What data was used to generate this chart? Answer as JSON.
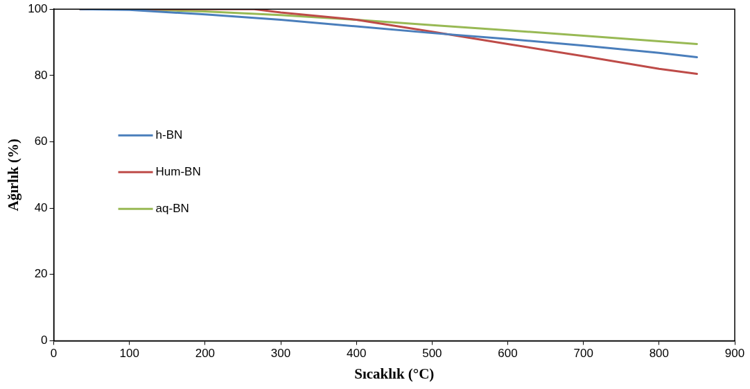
{
  "chart_data": {
    "type": "line",
    "xlabel": "Sıcaklık (°C)",
    "ylabel": "Ağırlık (%)",
    "xlim": [
      0,
      900
    ],
    "xticks": [
      0,
      100,
      200,
      300,
      400,
      500,
      600,
      700,
      800,
      900
    ],
    "ylim": [
      0,
      100
    ],
    "yticks": [
      0,
      20,
      40,
      60,
      80,
      100
    ],
    "grid": false,
    "legend": "left",
    "marker": "none",
    "line_style": "solid",
    "series": [
      {
        "name": "h-BN",
        "color": "#4a7ebb",
        "x": [
          35,
          100,
          200,
          300,
          400,
          500,
          600,
          700,
          800,
          850
        ],
        "values": [
          100,
          99.8,
          98.4,
          96.8,
          94.8,
          92.8,
          91,
          89,
          86.8,
          85.5
        ]
      },
      {
        "name": "Hum-BN",
        "color": "#be4b48",
        "x": [
          35,
          100,
          200,
          265,
          300,
          400,
          500,
          600,
          700,
          800,
          850
        ],
        "values": [
          100,
          100,
          100,
          100,
          99,
          96.8,
          93.2,
          89.5,
          85.8,
          82,
          80.5
        ]
      },
      {
        "name": "aq-BN",
        "color": "#98b954",
        "x": [
          35,
          100,
          200,
          300,
          400,
          500,
          600,
          700,
          800,
          850
        ],
        "values": [
          100,
          100,
          99.3,
          98.2,
          96.8,
          95.2,
          93.6,
          92,
          90.3,
          89.5
        ]
      }
    ]
  }
}
